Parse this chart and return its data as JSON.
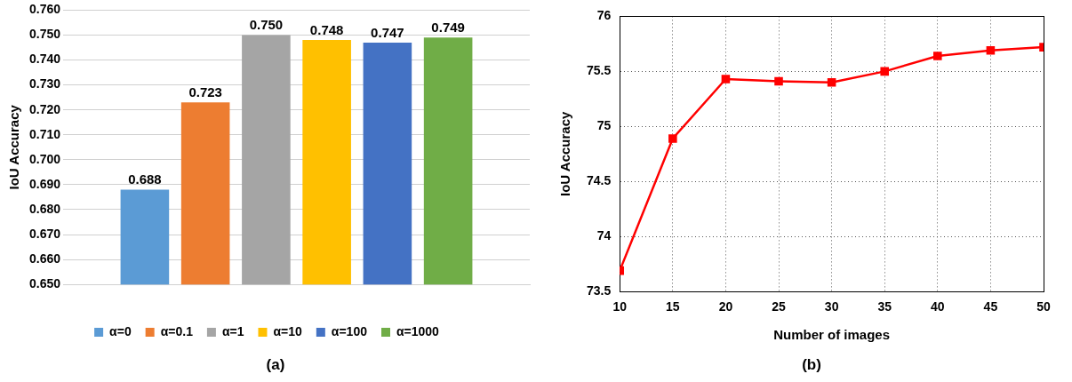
{
  "chart_data": [
    {
      "type": "bar",
      "ylabel": "IoU Accuracy",
      "categories": [
        null
      ],
      "series": [
        {
          "name": "α=0",
          "color": "#5b9bd5",
          "values": [
            0.688
          ]
        },
        {
          "name": "α=0.1",
          "color": "#ed7d31",
          "values": [
            0.723
          ]
        },
        {
          "name": "α=1",
          "color": "#a5a5a5",
          "values": [
            0.75
          ]
        },
        {
          "name": "α=10",
          "color": "#ffc000",
          "values": [
            0.748
          ]
        },
        {
          "name": "α=100",
          "color": "#4472c4",
          "values": [
            0.747
          ]
        },
        {
          "name": "α=1000",
          "color": "#70ad47",
          "values": [
            0.749
          ]
        }
      ],
      "ylim": [
        0.65,
        0.76
      ],
      "yticks": [
        {
          "value": 0.65,
          "label": "0.650"
        },
        {
          "value": 0.66,
          "label": "0.660"
        },
        {
          "value": 0.67,
          "label": "0.670"
        },
        {
          "value": 0.68,
          "label": "0.680"
        },
        {
          "value": 0.69,
          "label": "0.690"
        },
        {
          "value": 0.7,
          "label": "0.700"
        },
        {
          "value": 0.71,
          "label": "0.710"
        },
        {
          "value": 0.72,
          "label": "0.720"
        },
        {
          "value": 0.73,
          "label": "0.730"
        },
        {
          "value": 0.74,
          "label": "0.740"
        },
        {
          "value": 0.75,
          "label": "0.750"
        },
        {
          "value": 0.76,
          "label": "0.760"
        }
      ],
      "grid": "y",
      "legend": "bottom",
      "value_labels": [
        [
          "0.688"
        ],
        [
          "0.723"
        ],
        [
          "0.750"
        ],
        [
          "0.748"
        ],
        [
          "0.747"
        ],
        [
          "0.749"
        ]
      ],
      "annotations": [
        "(a)"
      ]
    },
    {
      "type": "line",
      "xlabel": "Number of images",
      "ylabel": "IoU Accuracy",
      "x": [
        10,
        15,
        20,
        25,
        30,
        35,
        40,
        45,
        50
      ],
      "series": [
        {
          "color": "#ff0000",
          "values": [
            73.69,
            74.89,
            75.43,
            75.41,
            75.4,
            75.5,
            75.64,
            75.69,
            75.72
          ]
        }
      ],
      "xlim": [
        10,
        50
      ],
      "xticks": [
        10,
        15,
        20,
        25,
        30,
        35,
        40,
        45,
        50
      ],
      "ylim": [
        73.5,
        76
      ],
      "yticks": [
        73.5,
        74,
        74.5,
        75,
        75.5,
        76
      ],
      "grid": true,
      "marker": "square",
      "line_style": "solid",
      "annotations": [
        "(b)"
      ]
    }
  ]
}
